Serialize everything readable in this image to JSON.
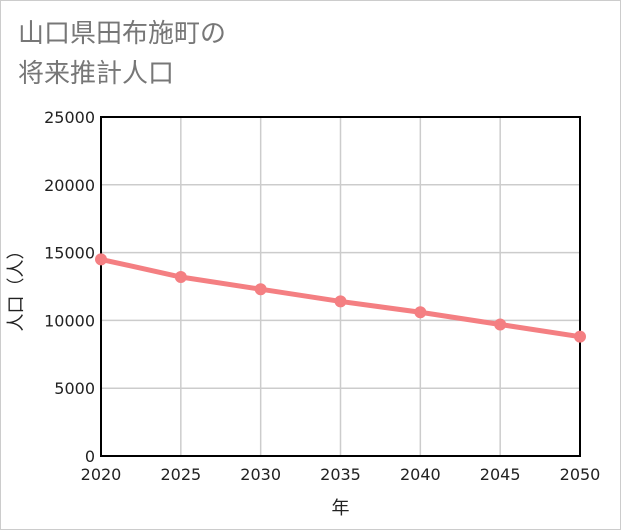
{
  "title": {
    "line1": "山口県田布施町の",
    "line2": "将来推計人口"
  },
  "colors": {
    "series": "#f47f82",
    "grid": "#cccccc",
    "axis": "#000000",
    "title": "#777777"
  },
  "chart_data": {
    "type": "line",
    "title": "山口県田布施町の将来推計人口",
    "xlabel": "年",
    "ylabel": "人口（人）",
    "x": [
      2020,
      2025,
      2030,
      2035,
      2040,
      2045,
      2050
    ],
    "xlim": [
      2020,
      2050
    ],
    "ylim": [
      0,
      25000
    ],
    "yticks": [
      0,
      5000,
      10000,
      15000,
      20000,
      25000
    ],
    "xticks": [
      2020,
      2025,
      2030,
      2035,
      2040,
      2045,
      2050
    ],
    "grid": true,
    "legend": "none",
    "series": [
      {
        "name": "人口",
        "values": [
          14500,
          13200,
          12300,
          11400,
          10600,
          9700,
          8800
        ]
      }
    ]
  }
}
